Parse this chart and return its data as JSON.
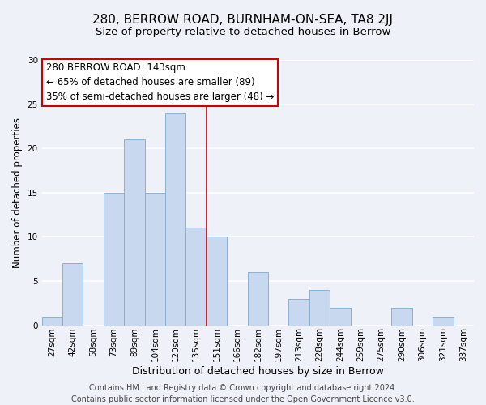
{
  "title": "280, BERROW ROAD, BURNHAM-ON-SEA, TA8 2JJ",
  "subtitle": "Size of property relative to detached houses in Berrow",
  "xlabel": "Distribution of detached houses by size in Berrow",
  "ylabel": "Number of detached properties",
  "bar_color": "#c8d8ee",
  "bar_edge_color": "#8ab0d0",
  "categories": [
    "27sqm",
    "42sqm",
    "58sqm",
    "73sqm",
    "89sqm",
    "104sqm",
    "120sqm",
    "135sqm",
    "151sqm",
    "166sqm",
    "182sqm",
    "197sqm",
    "213sqm",
    "228sqm",
    "244sqm",
    "259sqm",
    "275sqm",
    "290sqm",
    "306sqm",
    "321sqm",
    "337sqm"
  ],
  "values": [
    1,
    7,
    0,
    15,
    21,
    15,
    24,
    11,
    10,
    0,
    6,
    0,
    3,
    4,
    2,
    0,
    0,
    2,
    0,
    1,
    0
  ],
  "ylim": [
    0,
    30
  ],
  "yticks": [
    0,
    5,
    10,
    15,
    20,
    25,
    30
  ],
  "vline_x": 7.5,
  "vline_color": "#cc0000",
  "annotation_title": "280 BERROW ROAD: 143sqm",
  "annotation_line1": "← 65% of detached houses are smaller (89)",
  "annotation_line2": "35% of semi-detached houses are larger (48) →",
  "background_color": "#eef2f8",
  "grid_color": "#ffffff",
  "title_fontsize": 11,
  "subtitle_fontsize": 9.5,
  "xlabel_fontsize": 9,
  "ylabel_fontsize": 8.5,
  "tick_fontsize": 7.5,
  "annotation_fontsize": 8.5,
  "footer_fontsize": 7,
  "footer_line1": "Contains HM Land Registry data © Crown copyright and database right 2024.",
  "footer_line2": "Contains public sector information licensed under the Open Government Licence v3.0."
}
